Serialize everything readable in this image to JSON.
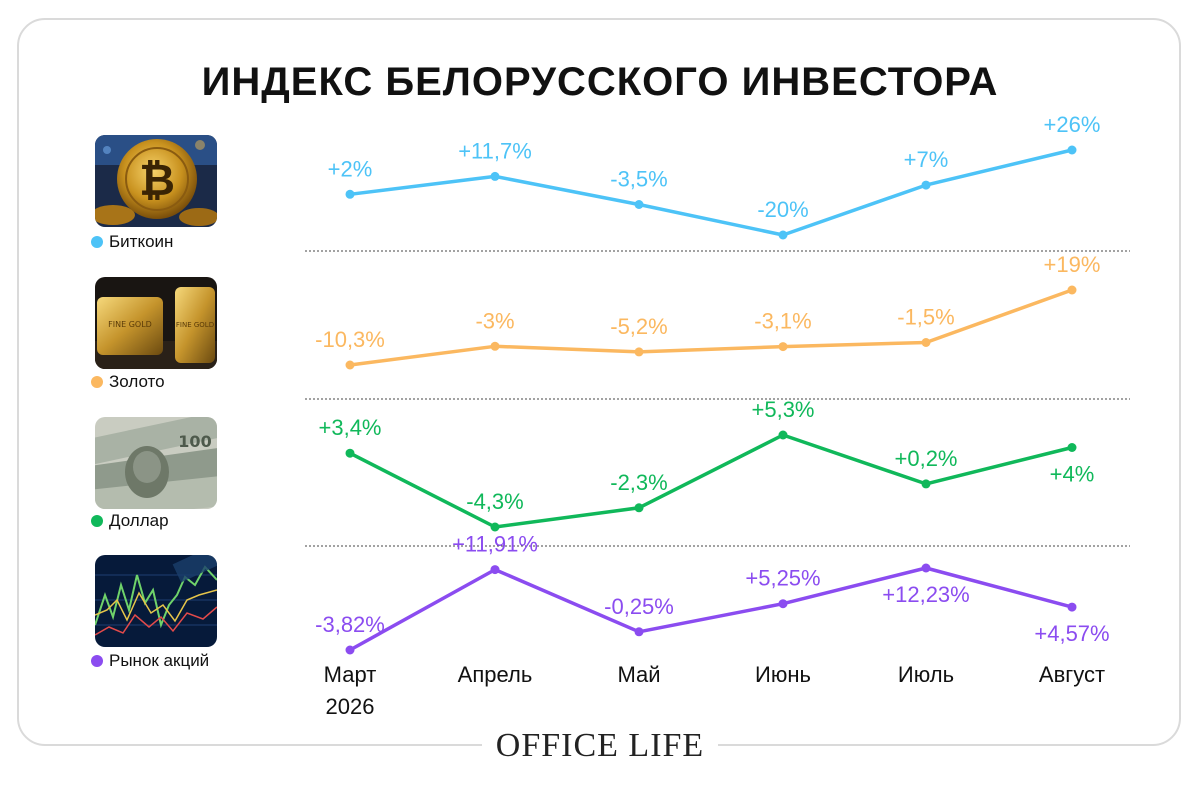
{
  "title": "ИНДЕКС БЕЛОРУССКОГО ИНВЕСТОРА",
  "brand": "OFFICE LIFE",
  "legend": [
    {
      "label": "Биткоин",
      "color": "#4dc3f7",
      "icon": "bitcoin-image"
    },
    {
      "label": "Золото",
      "color": "#fbb860",
      "icon": "gold-bars-image"
    },
    {
      "label": "Доллар",
      "color": "#10b85a",
      "icon": "dollar-bills-image"
    },
    {
      "label": "Рынок акций",
      "color": "#8b4cf0",
      "icon": "stock-chart-image"
    }
  ],
  "chart_data": {
    "type": "line",
    "title": "ИНДЕКС БЕЛОРУССКОГО ИНВЕСТОРА",
    "categories": [
      "Март 2026",
      "Апрель",
      "Май",
      "Июнь",
      "Июль",
      "Август"
    ],
    "category_labels": [
      [
        "Март",
        "2026"
      ],
      [
        "Апрель"
      ],
      [
        "Май"
      ],
      [
        "Июнь"
      ],
      [
        "Июль"
      ],
      [
        "Август"
      ]
    ],
    "grid": false,
    "legend_position": "left",
    "series": [
      {
        "name": "Биткоин",
        "color": "#4dc3f7",
        "values": [
          2,
          11.7,
          -3.5,
          -20,
          7,
          26
        ],
        "labels": [
          "+2%",
          "+11,7%",
          "-3,5%",
          "-20%",
          "+7%",
          "+26%"
        ]
      },
      {
        "name": "Золото",
        "color": "#fbb860",
        "values": [
          -10.3,
          -3,
          -5.2,
          -3.1,
          -1.5,
          19
        ],
        "labels": [
          "-10,3%",
          "-3%",
          "-5,2%",
          "-3,1%",
          "-1,5%",
          "+19%"
        ]
      },
      {
        "name": "Доллар",
        "color": "#10b85a",
        "values": [
          3.4,
          -4.3,
          -2.3,
          5.3,
          0.2,
          4
        ],
        "labels": [
          "+3,4%",
          "-4,3%",
          "-2,3%",
          "+5,3%",
          "+0,2%",
          "+4%"
        ]
      },
      {
        "name": "Рынок акций",
        "color": "#8b4cf0",
        "values": [
          -3.82,
          11.91,
          -0.25,
          5.25,
          12.23,
          4.57
        ],
        "labels": [
          "-3,82%",
          "+11,91%",
          "-0,25%",
          "+5,25%",
          "+12,23%",
          "+4,57%"
        ]
      }
    ]
  }
}
